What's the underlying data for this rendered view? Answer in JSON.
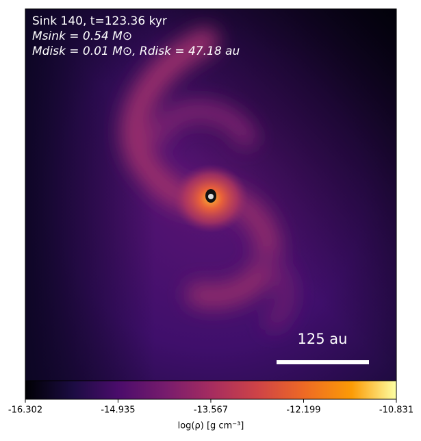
{
  "chart_data": {
    "type": "density-map",
    "annotations": [
      "Sink 140, t=123.36 kyr",
      "Msink = 0.54 M⊙",
      "Mdisk = 0.01 M⊙, Rdisk = 47.18 au"
    ],
    "scale_bar_label": "125 au",
    "colorbar": {
      "label": "log(ρ) [g cm⁻³]",
      "lim": [
        -16.302,
        -10.831
      ],
      "ticks": [
        -16.302,
        -14.935,
        -13.567,
        -12.199,
        -10.831
      ]
    }
  }
}
